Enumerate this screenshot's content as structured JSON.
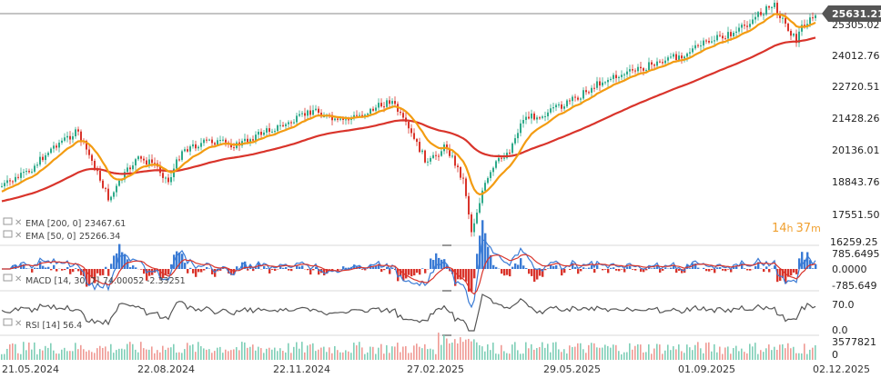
{
  "chart_data": {
    "type": "candlestick",
    "price_axis": {
      "ticks": [
        "25305.02",
        "24012.76",
        "22720.51",
        "21428.26",
        "20136.01",
        "18843.76",
        "17551.50",
        "16259.25"
      ],
      "current_price": "25631.21"
    },
    "x_axis": {
      "ticks": [
        "21.05.2024",
        "22.08.2024",
        "22.11.2024",
        "27.02.2025",
        "29.05.2025",
        "01.09.2025",
        "02.12.2025"
      ]
    },
    "indicators": {
      "ema200": {
        "label": "EMA [200, 0]",
        "value": "23467.61",
        "color": "#d9342b"
      },
      "ema50": {
        "label": "EMA [50, 0]",
        "value": "25266.34",
        "color": "#f39c12"
      },
      "macd": {
        "label": "MACD [14, 30, 7]",
        "value1": "74.00052",
        "value2": "-2.33251",
        "ticks": [
          "785.6495",
          "0.0000",
          "-785.649"
        ]
      },
      "rsi": {
        "label": "RSI [14]",
        "value": "56.4",
        "ticks": [
          "70.0",
          "0.0"
        ]
      },
      "volume": {
        "ticks": [
          "3577821",
          "0"
        ]
      }
    },
    "timer": {
      "hours": "14",
      "h_unit": "h",
      "minutes": "37",
      "m_unit": "m"
    },
    "colors": {
      "up": "#2eaa8a",
      "down": "#d9342b",
      "ema200": "#d9342b",
      "ema50": "#f39c12",
      "macd_line": "#3a7bd5",
      "signal_line": "#d9342b",
      "rsi_line": "#555555",
      "price_box": "#555555"
    }
  }
}
